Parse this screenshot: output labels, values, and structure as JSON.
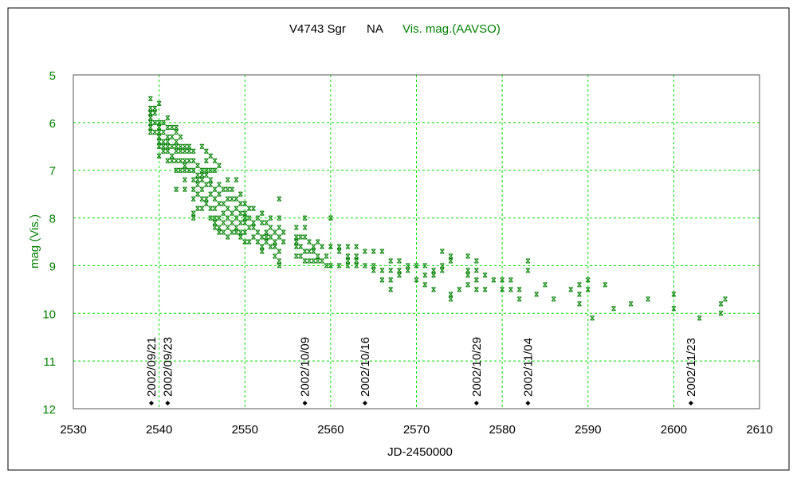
{
  "chart_data": {
    "type": "scatter",
    "title": {
      "object": "V4743 Sgr",
      "tag": "NA",
      "series_label": "Vis. mag.(AAVSO)"
    },
    "xlabel": "JD-2450000",
    "ylabel": "mag (Vis.)",
    "xlim": [
      2530,
      2610
    ],
    "ylim": [
      5,
      12
    ],
    "y_inverted": true,
    "grid": true,
    "xticks": [
      2530,
      2540,
      2550,
      2560,
      2570,
      2580,
      2590,
      2600,
      2610
    ],
    "yticks": [
      5,
      6,
      7,
      8,
      9,
      10,
      11,
      12
    ],
    "colors": {
      "series": "#008000",
      "grid": "#00e000",
      "frame": "#000000",
      "axis_text_y": "#008000",
      "axis_text_x": "#000000"
    },
    "date_markers": [
      {
        "jd": 2539.1,
        "label": "2002/09/21"
      },
      {
        "jd": 2541.0,
        "label": "2002/09/23"
      },
      {
        "jd": 2557.0,
        "label": "2002/10/09"
      },
      {
        "jd": 2564.0,
        "label": "2002/10/16"
      },
      {
        "jd": 2577.0,
        "label": "2002/10/29"
      },
      {
        "jd": 2583.0,
        "label": "2002/11/04"
      },
      {
        "jd": 2602.0,
        "label": "2002/11/23"
      }
    ],
    "series": [
      {
        "name": "Vis. mag.(AAVSO)",
        "points_grouped": [
          [
            2539,
            [
              5.5,
              5.8,
              5.8,
              6.0,
              6.1,
              6.2,
              5.9,
              5.7
            ]
          ],
          [
            2539.5,
            [
              5.8,
              6.0,
              6.2,
              5.7
            ]
          ],
          [
            2540,
            [
              5.6,
              6.0,
              6.2,
              6.4,
              6.5,
              6.7,
              6.1,
              6.3
            ]
          ],
          [
            2540.5,
            [
              6.0,
              6.2,
              6.4,
              6.6,
              6.5
            ]
          ],
          [
            2541,
            [
              5.9,
              6.1,
              6.3,
              6.5,
              6.6,
              6.8,
              6.4
            ]
          ],
          [
            2541.5,
            [
              6.1,
              6.3,
              6.5,
              6.7,
              6.8
            ]
          ],
          [
            2542,
            [
              6.2,
              6.4,
              6.6,
              6.8,
              7.0,
              7.4,
              6.1,
              6.5
            ]
          ],
          [
            2542.5,
            [
              6.3,
              6.5,
              6.6,
              6.8,
              7.0
            ]
          ],
          [
            2543,
            [
              6.5,
              6.6,
              6.8,
              6.9,
              7.0,
              7.2,
              7.4
            ]
          ],
          [
            2543.5,
            [
              6.6,
              6.8,
              7.0,
              6.5
            ]
          ],
          [
            2544,
            [
              6.6,
              6.8,
              7.0,
              7.2,
              7.4,
              7.6,
              7.9,
              8.0
            ]
          ],
          [
            2544.5,
            [
              6.9,
              7.1,
              7.2,
              7.3,
              7.5,
              7.8
            ]
          ],
          [
            2545,
            [
              6.5,
              7.0,
              7.1,
              7.2,
              7.4,
              7.6,
              7.8
            ]
          ],
          [
            2545.5,
            [
              6.6,
              6.8,
              7.0,
              7.1,
              7.3,
              7.6,
              7.7
            ]
          ],
          [
            2546,
            [
              6.7,
              7.0,
              7.2,
              7.3,
              7.5,
              7.8,
              8.0
            ]
          ],
          [
            2546.5,
            [
              6.8,
              7.0,
              7.4,
              7.6,
              7.8,
              8.0,
              8.1,
              8.2
            ]
          ],
          [
            2547,
            [
              6.9,
              7.3,
              7.5,
              7.7,
              8.0,
              8.2,
              8.3
            ]
          ],
          [
            2547.5,
            [
              7.4,
              7.7,
              7.9,
              8.1,
              8.3
            ]
          ],
          [
            2548,
            [
              7.2,
              7.4,
              7.6,
              7.8,
              8.0,
              8.2,
              8.4
            ]
          ],
          [
            2548.5,
            [
              7.4,
              7.6,
              7.9,
              8.1,
              8.3
            ]
          ],
          [
            2549,
            [
              7.2,
              7.6,
              7.8,
              8.0,
              8.2,
              8.3
            ]
          ],
          [
            2549.5,
            [
              7.5,
              7.7,
              7.9,
              8.1,
              8.3,
              8.4
            ]
          ],
          [
            2550,
            [
              7.7,
              7.9,
              8.1,
              8.3,
              8.5,
              8.0
            ]
          ],
          [
            2550.5,
            [
              7.8,
              8.0,
              8.2,
              8.5
            ]
          ],
          [
            2551,
            [
              7.8,
              8.1,
              8.2,
              8.4
            ]
          ],
          [
            2551.5,
            [
              8.0,
              8.3,
              8.5
            ]
          ],
          [
            2552,
            [
              7.9,
              8.1,
              8.4,
              8.6,
              8.7
            ]
          ],
          [
            2552.5,
            [
              8.1,
              8.3,
              8.4,
              8.5
            ]
          ],
          [
            2553,
            [
              8.0,
              8.2,
              8.4,
              8.6
            ]
          ],
          [
            2553.5,
            [
              8.3,
              8.5,
              8.6,
              8.8
            ]
          ],
          [
            2554,
            [
              7.6,
              8.0,
              8.2,
              8.4,
              8.7,
              8.9,
              9.0
            ]
          ],
          [
            2554.5,
            [
              8.3,
              8.5
            ]
          ],
          [
            2556,
            [
              8.2,
              8.4,
              8.6,
              8.8,
              8.5
            ]
          ],
          [
            2556.5,
            [
              8.4,
              8.6,
              8.8
            ]
          ],
          [
            2557,
            [
              8.0,
              8.2,
              8.4,
              8.7,
              8.9
            ]
          ],
          [
            2557.5,
            [
              8.5,
              8.7,
              8.9
            ]
          ],
          [
            2558,
            [
              8.6,
              8.7,
              8.9
            ]
          ],
          [
            2558.5,
            [
              8.5,
              8.8,
              8.9
            ]
          ],
          [
            2559,
            [
              8.6,
              8.9
            ]
          ],
          [
            2559.5,
            [
              8.8,
              9.0
            ]
          ],
          [
            2560,
            [
              8.0,
              8.6,
              9.0
            ]
          ],
          [
            2561,
            [
              8.6,
              8.7,
              9.0
            ]
          ],
          [
            2562,
            [
              8.6,
              8.8,
              8.9,
              9.0
            ]
          ],
          [
            2563,
            [
              8.6,
              8.8,
              8.9,
              9.0
            ]
          ],
          [
            2564,
            [
              8.7,
              9.0
            ]
          ],
          [
            2565,
            [
              8.7,
              9.0,
              9.1
            ]
          ],
          [
            2566,
            [
              8.7,
              9.1,
              9.3
            ]
          ],
          [
            2567,
            [
              8.9,
              9.1,
              9.3,
              9.5
            ]
          ],
          [
            2568,
            [
              8.9,
              9.1,
              9.2
            ]
          ],
          [
            2569,
            [
              9.0,
              9.1
            ]
          ],
          [
            2570,
            [
              9.0,
              9.3
            ]
          ],
          [
            2571,
            [
              9.0,
              9.2,
              9.4
            ]
          ],
          [
            2572,
            [
              9.1,
              9.2,
              9.5
            ]
          ],
          [
            2573,
            [
              9.0,
              9.1,
              8.7
            ]
          ],
          [
            2574,
            [
              8.9,
              8.8,
              9.6,
              9.7
            ]
          ],
          [
            2575,
            [
              9.5
            ]
          ],
          [
            2576,
            [
              8.8,
              9.1,
              9.2,
              9.4
            ]
          ],
          [
            2577,
            [
              8.9,
              9.1,
              9.3,
              9.5
            ]
          ],
          [
            2578,
            [
              9.2,
              9.5
            ]
          ],
          [
            2579,
            [
              9.3
            ]
          ],
          [
            2580,
            [
              9.3,
              9.5
            ]
          ],
          [
            2581,
            [
              9.3,
              9.5
            ]
          ],
          [
            2582,
            [
              9.5,
              9.7
            ]
          ],
          [
            2583,
            [
              9.1,
              8.9
            ]
          ],
          [
            2584,
            [
              9.6
            ]
          ],
          [
            2585,
            [
              9.4
            ]
          ],
          [
            2586,
            [
              9.7
            ]
          ],
          [
            2588,
            [
              9.5
            ]
          ],
          [
            2589,
            [
              9.4,
              9.6,
              9.8
            ]
          ],
          [
            2590,
            [
              9.3,
              9.5
            ]
          ],
          [
            2590.5,
            [
              10.1
            ]
          ],
          [
            2592,
            [
              9.4
            ]
          ],
          [
            2593,
            [
              9.9
            ]
          ],
          [
            2595,
            [
              9.8
            ]
          ],
          [
            2597,
            [
              9.7
            ]
          ],
          [
            2600,
            [
              9.6,
              9.9
            ]
          ],
          [
            2603,
            [
              10.1
            ]
          ],
          [
            2605.5,
            [
              9.8,
              10.0
            ]
          ],
          [
            2606,
            [
              9.7
            ]
          ]
        ]
      }
    ]
  }
}
